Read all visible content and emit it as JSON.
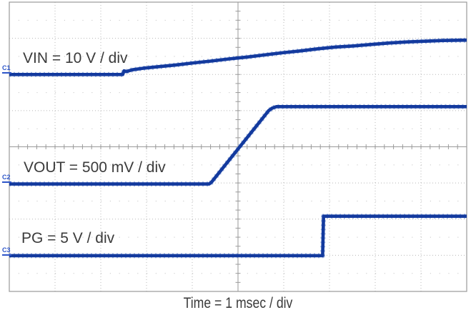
{
  "scope": {
    "traces": [
      {
        "channel": "C1",
        "signal": "VIN",
        "label": "VIN = 10 V / div",
        "scale_per_div": "10 V"
      },
      {
        "channel": "C2",
        "signal": "VOUT",
        "label": "VOUT = 500 mV / div",
        "scale_per_div": "500 mV"
      },
      {
        "channel": "C3",
        "signal": "PG",
        "label": "PG = 5 V / div",
        "scale_per_div": "5 V"
      }
    ],
    "time_label": "Time = 1 msec / div",
    "colors": {
      "trace": "#133a9e",
      "trace_halo": "#7b98d6",
      "channel_marker": "#2d55c8",
      "grid_solid": "#9a9a9a",
      "grid_dotted": "#b8b8b8",
      "grid_dots": "#c8c8c8",
      "label_text": "#3b3b3b",
      "background": "#ffffff"
    }
  },
  "chart_data": {
    "type": "line",
    "title": "",
    "xlabel": "Time = 1 msec / div",
    "ylabel": "",
    "x_units": "ms",
    "x_range": [
      0,
      10
    ],
    "y_units": "graticule divisions from bottom",
    "y_range": [
      0,
      8
    ],
    "grid": "10x8 divisions; dotted major gridlines; solid center crosshair with minor ticks; dot rows at half divisions",
    "legend_position": "labels drawn inside plot",
    "annotations": [
      "VIN = 10 V / div",
      "VOUT = 500 mV / div",
      "PG = 5 V / div",
      "Time = 1 msec / div"
    ],
    "series": [
      {
        "name": "VIN",
        "channel": "C1",
        "scale_per_div": "10 V",
        "description": "flat, small step at 2.5 ms then gradual concave rise",
        "points": [
          [
            0,
            6.0
          ],
          [
            2.45,
            6.0
          ],
          [
            2.48,
            6.0
          ],
          [
            2.51,
            6.1
          ],
          [
            2.56,
            6.08
          ],
          [
            2.69,
            6.13
          ],
          [
            2.92,
            6.17
          ],
          [
            3.23,
            6.21
          ],
          [
            3.63,
            6.26
          ],
          [
            4.02,
            6.32
          ],
          [
            4.41,
            6.37
          ],
          [
            4.8,
            6.43
          ],
          [
            5.19,
            6.48
          ],
          [
            5.58,
            6.54
          ],
          [
            5.97,
            6.6
          ],
          [
            6.36,
            6.65
          ],
          [
            6.75,
            6.71
          ],
          [
            7.14,
            6.76
          ],
          [
            7.53,
            6.79
          ],
          [
            7.92,
            6.83
          ],
          [
            8.31,
            6.87
          ],
          [
            8.7,
            6.9
          ],
          [
            9.09,
            6.92
          ],
          [
            9.48,
            6.94
          ],
          [
            10,
            6.95
          ]
        ]
      },
      {
        "name": "VOUT",
        "channel": "C2",
        "scale_per_div": "500 mV",
        "description": "flat at reference, linear ramp 4.4-5.8 ms, settles ~1.05 V above reference",
        "points": [
          [
            0,
            2.97
          ],
          [
            4.37,
            2.97
          ],
          [
            4.42,
            3.02
          ],
          [
            5.67,
            5.0
          ],
          [
            5.75,
            5.07
          ],
          [
            5.84,
            5.11
          ],
          [
            10,
            5.11
          ]
        ]
      },
      {
        "name": "PG",
        "channel": "C3",
        "scale_per_div": "5 V",
        "description": "logic low, steps high at 6.86 ms",
        "points": [
          [
            0,
            0.99
          ],
          [
            6.85,
            0.99
          ],
          [
            6.87,
            2.08
          ],
          [
            10,
            2.08
          ]
        ]
      }
    ]
  }
}
